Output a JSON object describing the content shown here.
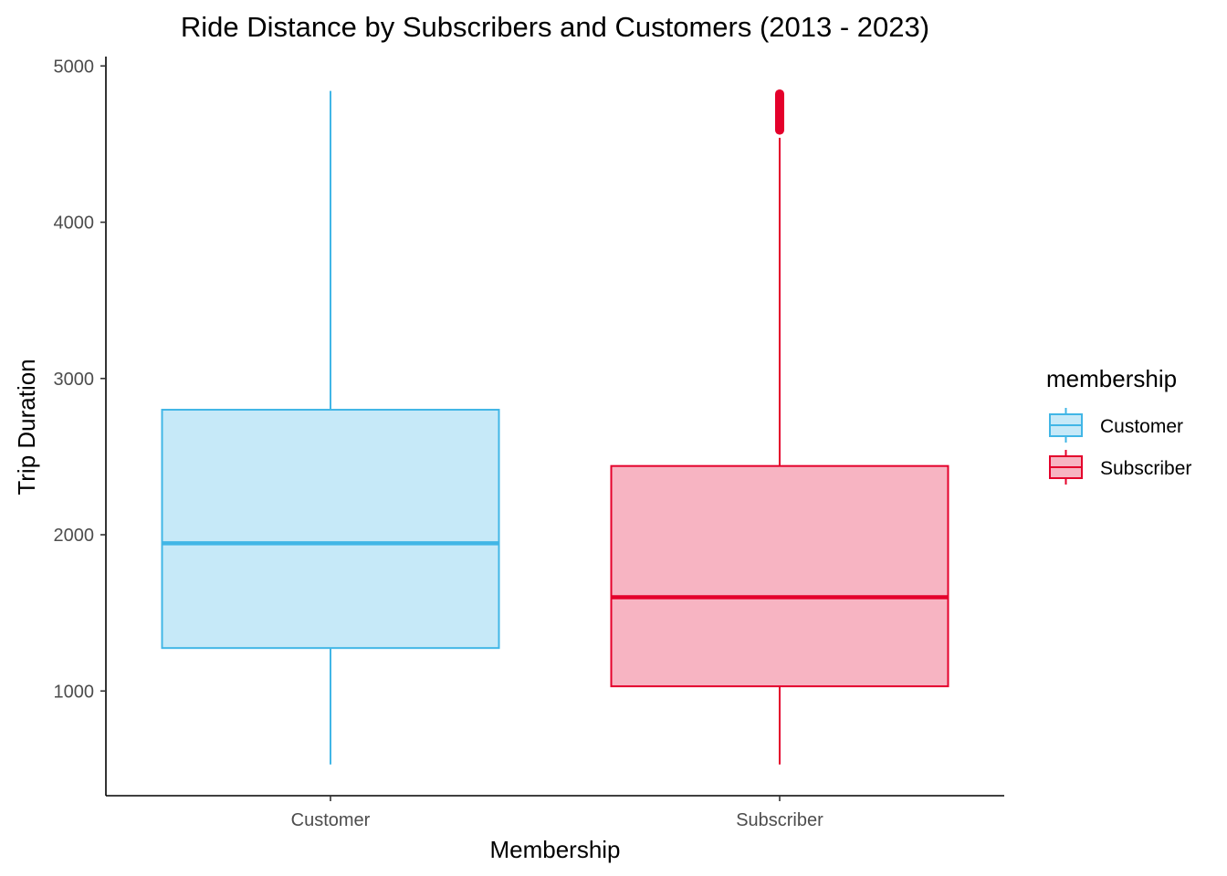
{
  "chart_data": {
    "type": "boxplot",
    "title": "Ride Distance by Subscribers and Customers (2013 - 2023)",
    "xlabel": "Membership",
    "ylabel": "Trip Duration",
    "categories": [
      "Customer",
      "Subscriber"
    ],
    "ylim": [
      330,
      5060
    ],
    "yticks": [
      1000,
      2000,
      3000,
      4000,
      5000
    ],
    "ytick_labels": [
      "1000",
      "2000",
      "3000",
      "4000",
      "5000"
    ],
    "grid": false,
    "legend": {
      "title": "membership",
      "placement": "right",
      "entries": [
        "Customer",
        "Subscriber"
      ]
    },
    "series": [
      {
        "name": "Customer",
        "min": 530,
        "q1": 1275,
        "median": 1945,
        "q3": 2800,
        "max": 4840,
        "outliers_range": null,
        "fill": "#c6e9f8",
        "stroke": "#41b6e6"
      },
      {
        "name": "Subscriber",
        "min": 530,
        "q1": 1030,
        "median": 1600,
        "q3": 2440,
        "max": 4540,
        "outliers_range": [
          4560,
          4850
        ],
        "fill": "#f7b4c2",
        "stroke": "#e4002b"
      }
    ]
  }
}
